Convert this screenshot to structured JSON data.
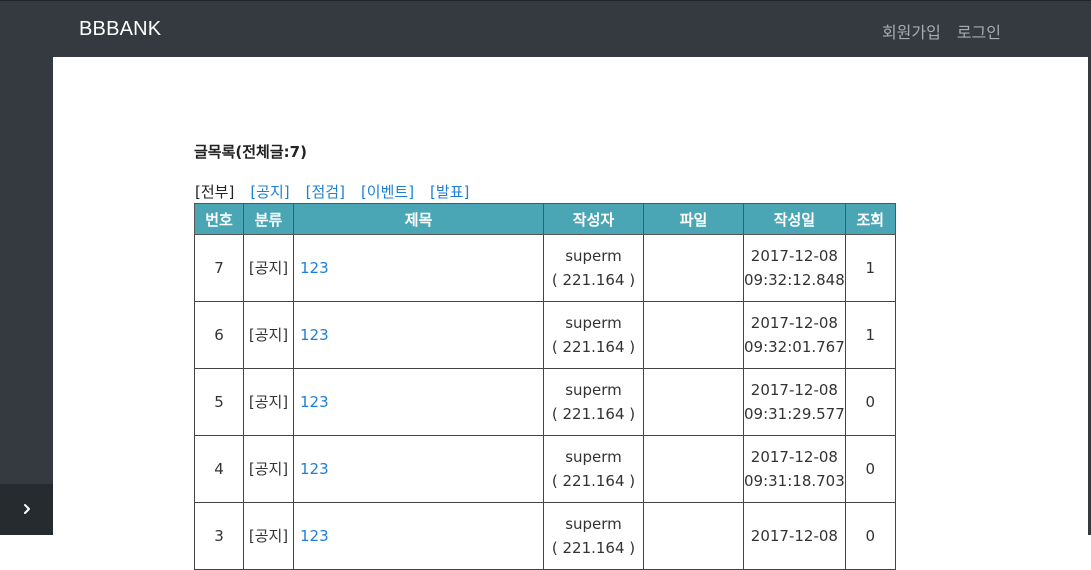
{
  "app": {
    "brand": "BBBANK"
  },
  "nav": {
    "signup": "회원가입",
    "login": "로그인"
  },
  "page": {
    "title": "글목록(전체글:7)"
  },
  "filters": {
    "current": "[전부]",
    "links": [
      "[공지]",
      "[점검]",
      "[이벤트]",
      "[발표]"
    ]
  },
  "table": {
    "headers": [
      "번호",
      "분류",
      "제목",
      "작성자",
      "파일",
      "작성일",
      "조회"
    ],
    "rows": [
      {
        "num": "7",
        "category": "[공지]",
        "subject": "123",
        "author": "superm",
        "ip": "( 221.164 )",
        "file": "",
        "date": "2017-12-08",
        "time": "09:32:12.848",
        "views": "1"
      },
      {
        "num": "6",
        "category": "[공지]",
        "subject": "123",
        "author": "superm",
        "ip": "( 221.164 )",
        "file": "",
        "date": "2017-12-08",
        "time": "09:32:01.767",
        "views": "1"
      },
      {
        "num": "5",
        "category": "[공지]",
        "subject": "123",
        "author": "superm",
        "ip": "( 221.164 )",
        "file": "",
        "date": "2017-12-08",
        "time": "09:31:29.577",
        "views": "0"
      },
      {
        "num": "4",
        "category": "[공지]",
        "subject": "123",
        "author": "superm",
        "ip": "( 221.164 )",
        "file": "",
        "date": "2017-12-08",
        "time": "09:31:18.703",
        "views": "0"
      },
      {
        "num": "3",
        "category": "[공지]",
        "subject": "123",
        "author": "superm",
        "ip": "( 221.164 )",
        "file": "",
        "date": "2017-12-08",
        "time": "",
        "views": "0"
      }
    ]
  },
  "sidebar": {
    "toggle_icon": "chevron-right-icon"
  },
  "colors": {
    "topbar": "#343a40",
    "header": "#4aa6b5",
    "link": "#1e7fd6"
  }
}
